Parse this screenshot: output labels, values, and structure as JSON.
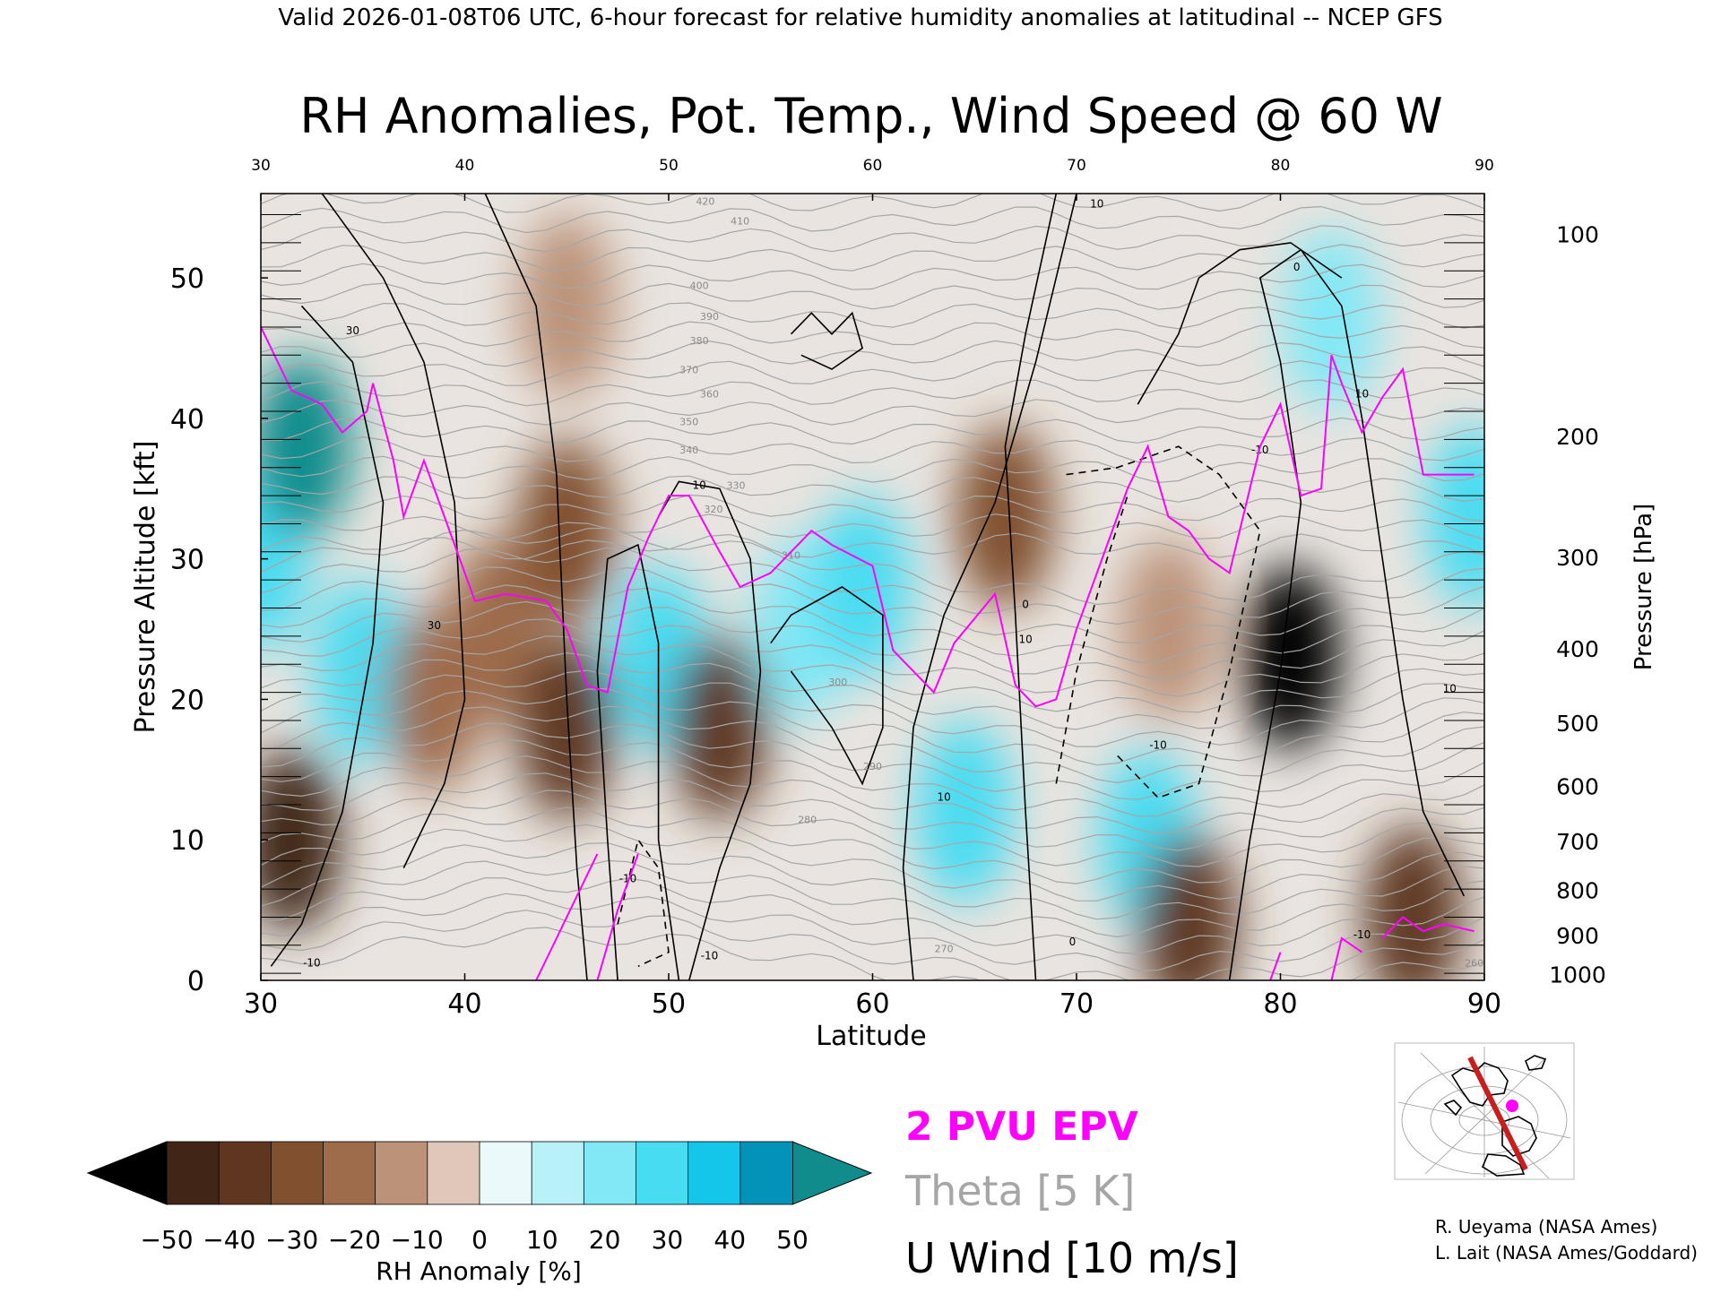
{
  "header": "Valid 2026-01-08T06 UTC, 6-hour forecast for relative humidity anomalies at latitudinal -- NCEP GFS",
  "chart_data": {
    "type": "heatmap",
    "title": "RH Anomalies, Pot. Temp., Wind Speed @ 60 W",
    "xlabel": "Latitude",
    "ylabel": "Pressure Altitude [kft]",
    "y2label": "Pressure [hPa]",
    "xlim": [
      30,
      90
    ],
    "ylim": [
      0,
      56
    ],
    "x_ticks": [
      "30",
      "40",
      "50",
      "60",
      "70",
      "80",
      "90"
    ],
    "x_ticks_top": [
      "30",
      "40",
      "50",
      "60",
      "70",
      "80",
      "90"
    ],
    "y_ticks": [
      "0",
      "10",
      "20",
      "30",
      "40",
      "50"
    ],
    "pressure_ticks": [
      {
        "label": "100",
        "kft": 53.1
      },
      {
        "label": "200",
        "kft": 38.7
      },
      {
        "label": "300",
        "kft": 30.1
      },
      {
        "label": "400",
        "kft": 23.6
      },
      {
        "label": "500",
        "kft": 18.3
      },
      {
        "label": "600",
        "kft": 13.8
      },
      {
        "label": "700",
        "kft": 9.9
      },
      {
        "label": "800",
        "kft": 6.4
      },
      {
        "label": "900",
        "kft": 3.2
      },
      {
        "label": "1000",
        "kft": 0.4
      }
    ],
    "theta_labels": [
      {
        "label": "420",
        "lat": 51.8,
        "kft": 55.2
      },
      {
        "label": "410",
        "lat": 53.5,
        "kft": 53.8
      },
      {
        "label": "400",
        "lat": 51.5,
        "kft": 49.2
      },
      {
        "label": "390",
        "lat": 52.0,
        "kft": 47.0
      },
      {
        "label": "380",
        "lat": 51.5,
        "kft": 45.3
      },
      {
        "label": "370",
        "lat": 51.0,
        "kft": 43.2
      },
      {
        "label": "360",
        "lat": 52.0,
        "kft": 41.5
      },
      {
        "label": "350",
        "lat": 51.0,
        "kft": 39.5
      },
      {
        "label": "340",
        "lat": 51.0,
        "kft": 37.5
      },
      {
        "label": "330",
        "lat": 53.3,
        "kft": 35.0
      },
      {
        "label": "320",
        "lat": 52.2,
        "kft": 33.3
      },
      {
        "label": "310",
        "lat": 56.0,
        "kft": 30.0
      },
      {
        "label": "300",
        "lat": 58.3,
        "kft": 21.0
      },
      {
        "label": "290",
        "lat": 60.0,
        "kft": 15.0
      },
      {
        "label": "280",
        "lat": 56.8,
        "kft": 11.2
      },
      {
        "label": "270",
        "lat": 63.5,
        "kft": 2.0
      },
      {
        "label": "260",
        "lat": 89.5,
        "kft": 1.0
      }
    ],
    "u_wind_labels": [
      {
        "label": "30",
        "lat": 34.5,
        "kft": 46.0
      },
      {
        "label": "30",
        "lat": 38.5,
        "kft": 25.0
      },
      {
        "label": "10",
        "lat": 51.5,
        "kft": 35.0
      },
      {
        "label": "10",
        "lat": 67.5,
        "kft": 24.0
      },
      {
        "label": "10",
        "lat": 63.5,
        "kft": 12.8
      },
      {
        "label": "10",
        "lat": 71.0,
        "kft": 55.0
      },
      {
        "label": "0",
        "lat": 80.8,
        "kft": 50.5
      },
      {
        "label": "0",
        "lat": 67.5,
        "kft": 26.5
      },
      {
        "label": "10",
        "lat": 84.0,
        "kft": 41.5
      },
      {
        "label": "10",
        "lat": 88.3,
        "kft": 20.5
      },
      {
        "label": "-10",
        "lat": 79.0,
        "kft": 37.5
      },
      {
        "label": "-10",
        "lat": 48.0,
        "kft": 7.0
      },
      {
        "label": "-10",
        "lat": 52.0,
        "kft": 1.5
      },
      {
        "label": "-10",
        "lat": 74.0,
        "kft": 16.5
      },
      {
        "label": "-10",
        "lat": 84.0,
        "kft": 3.0
      },
      {
        "label": "-10",
        "lat": 32.5,
        "kft": 1.0
      },
      {
        "label": "0",
        "lat": 69.8,
        "kft": 2.5
      }
    ],
    "colorbar": {
      "label": "RH Anomaly [%]",
      "ticks": [
        "−50",
        "−40",
        "−30",
        "−20",
        "−10",
        "0",
        "10",
        "20",
        "30",
        "40",
        "50"
      ],
      "colors": [
        "#412617",
        "#5f3721",
        "#80502f",
        "#9e6c4b",
        "#bc9379",
        "#dfc8b9",
        "#ecf9fb",
        "#b9f1f8",
        "#82e8f6",
        "#48dcf2",
        "#13c6ea",
        "#0493b8"
      ],
      "under_color": "#000000",
      "over_color": "#118c8c"
    },
    "legend": {
      "epv": "2 PVU EPV",
      "theta": "Theta [5 K]",
      "uwind": "U Wind [10 m/s]",
      "epv_color": "#ff00ff",
      "theta_color": "#a6a6a6",
      "uwind_color": "#000000"
    },
    "credits": [
      "R. Ueyama (NASA Ames)",
      "L. Lait (NASA Ames/Goddard)"
    ],
    "rh_anomaly_features": [
      {
        "lat": 30.0,
        "kft": 30.0,
        "value": 25
      },
      {
        "lat": 32.0,
        "kft": 38.0,
        "value": 50
      },
      {
        "lat": 31.5,
        "kft": 10.0,
        "value": -45
      },
      {
        "lat": 35.0,
        "kft": 22.0,
        "value": 25
      },
      {
        "lat": 38.5,
        "kft": 20.0,
        "value": -20
      },
      {
        "lat": 41.5,
        "kft": 25.0,
        "value": -25
      },
      {
        "lat": 45.0,
        "kft": 18.0,
        "value": -40
      },
      {
        "lat": 45.0,
        "kft": 32.0,
        "value": -30
      },
      {
        "lat": 49.5,
        "kft": 23.0,
        "value": 30
      },
      {
        "lat": 52.5,
        "kft": 18.0,
        "value": -35
      },
      {
        "lat": 56.5,
        "kft": 25.0,
        "value": 20
      },
      {
        "lat": 59.5,
        "kft": 28.0,
        "value": 25
      },
      {
        "lat": 64.5,
        "kft": 12.0,
        "value": 30
      },
      {
        "lat": 66.5,
        "kft": 33.0,
        "value": -30
      },
      {
        "lat": 73.5,
        "kft": 10.0,
        "value": 25
      },
      {
        "lat": 74.5,
        "kft": 25.0,
        "value": -10
      },
      {
        "lat": 75.5,
        "kft": 4.0,
        "value": -40
      },
      {
        "lat": 80.5,
        "kft": 23.0,
        "value": -50
      },
      {
        "lat": 82.5,
        "kft": 47.0,
        "value": 20
      },
      {
        "lat": 86.5,
        "kft": 4.5,
        "value": -35
      },
      {
        "lat": 89.5,
        "kft": 33.0,
        "value": 30
      },
      {
        "lat": 45.0,
        "kft": 48.0,
        "value": -10
      }
    ],
    "epv_2pvu_line": [
      [
        30,
        46.5
      ],
      [
        31.5,
        42
      ],
      [
        33,
        41
      ],
      [
        34,
        39
      ],
      [
        35.2,
        40.5
      ],
      [
        35.5,
        42.5
      ],
      [
        36.5,
        37
      ],
      [
        37,
        33
      ],
      [
        38,
        37
      ],
      [
        39,
        33
      ],
      [
        40.5,
        27
      ],
      [
        42,
        27.5
      ],
      [
        44,
        27
      ],
      [
        45,
        25
      ],
      [
        46,
        21
      ],
      [
        47,
        20.5
      ],
      [
        48,
        28
      ],
      [
        49,
        31.5
      ],
      [
        50,
        34.5
      ],
      [
        51,
        34.5
      ],
      [
        52.5,
        30.5
      ],
      [
        53.5,
        28
      ],
      [
        55,
        29
      ],
      [
        57,
        32
      ],
      [
        58,
        31
      ],
      [
        60,
        29.5
      ],
      [
        61,
        23.5
      ],
      [
        62,
        22
      ],
      [
        63,
        20.5
      ],
      [
        64,
        24
      ],
      [
        66,
        27.5
      ],
      [
        67,
        21
      ],
      [
        68,
        19.5
      ],
      [
        69,
        20
      ],
      [
        70,
        25
      ],
      [
        71,
        29
      ],
      [
        72.5,
        35
      ],
      [
        73.5,
        38
      ],
      [
        74.5,
        33
      ],
      [
        75.5,
        32
      ],
      [
        76.5,
        30
      ],
      [
        77.5,
        29
      ],
      [
        79,
        38
      ],
      [
        80,
        41
      ],
      [
        81,
        34.5
      ],
      [
        82,
        35
      ],
      [
        82.5,
        44.5
      ],
      [
        83,
        42.5
      ],
      [
        84,
        39
      ],
      [
        85,
        41.5
      ],
      [
        86,
        43.5
      ],
      [
        87,
        36
      ],
      [
        88,
        36
      ],
      [
        89.5,
        36
      ]
    ],
    "epv_surface_segments": [
      [
        [
          43.5,
          0
        ],
        [
          44.5,
          3
        ],
        [
          45.5,
          6
        ],
        [
          46.5,
          9
        ]
      ],
      [
        [
          46.5,
          0
        ],
        [
          47.5,
          5
        ],
        [
          48.5,
          9
        ]
      ],
      [
        [
          79.5,
          0
        ],
        [
          80,
          2
        ]
      ],
      [
        [
          82.5,
          0
        ],
        [
          83,
          3
        ],
        [
          84,
          2
        ]
      ],
      [
        [
          85,
          3
        ],
        [
          86,
          4.5
        ],
        [
          87,
          3.5
        ],
        [
          88,
          4
        ],
        [
          89.5,
          3.5
        ]
      ]
    ]
  }
}
